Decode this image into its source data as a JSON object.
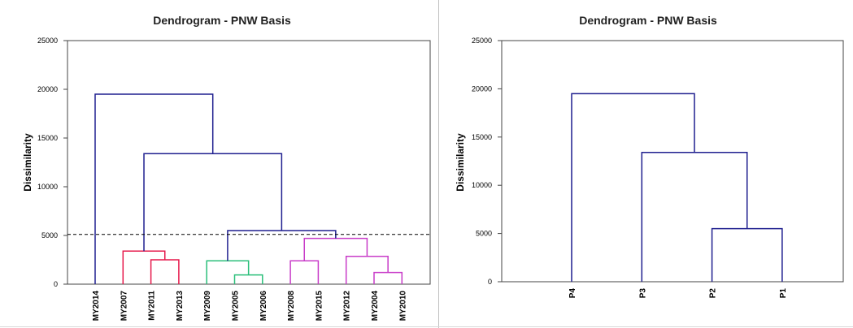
{
  "chart_data": [
    {
      "type": "dendrogram",
      "title": "Dendrogram - PNW Basis",
      "ylabel": "Dissimilarity",
      "xlabel": "",
      "ylim": [
        0,
        25000
      ],
      "yticks": [
        0,
        5000,
        10000,
        15000,
        20000,
        25000
      ],
      "grid": false,
      "leaves": [
        "MY2014",
        "MY2007",
        "MY2011",
        "MY2013",
        "MY2009",
        "MY2005",
        "MY2006",
        "MY2008",
        "MY2015",
        "MY2012",
        "MY2004",
        "MY2010"
      ],
      "cut_line": 5100,
      "cluster_colors": [
        "#1f1f8f",
        "#e6194b",
        "#2bbf7a",
        "#c83cc8"
      ],
      "merges": [
        {
          "left": "MY2011",
          "right": "MY2013",
          "height": 2500,
          "color": "#e6194b"
        },
        {
          "left": "MY2007",
          "right": "MY2011+MY2013",
          "height": 3400,
          "color": "#e6194b"
        },
        {
          "left": "MY2005",
          "right": "MY2006",
          "height": 950,
          "color": "#2bbf7a"
        },
        {
          "left": "MY2009",
          "right": "MY2005+MY2006",
          "height": 2400,
          "color": "#2bbf7a"
        },
        {
          "left": "MY2008",
          "right": "MY2015",
          "height": 2400,
          "color": "#c83cc8"
        },
        {
          "left": "MY2004",
          "right": "MY2010",
          "height": 1200,
          "color": "#c83cc8"
        },
        {
          "left": "MY2012",
          "right": "MY2004+MY2010",
          "height": 2850,
          "color": "#c83cc8"
        },
        {
          "left": "MY2008+MY2015",
          "right": "MY2012+MY2004+MY2010",
          "height": 4700,
          "color": "#c83cc8"
        },
        {
          "left": "MY2009+MY2005+MY2006",
          "right": "MY2008+MY2015+MY2012+MY2004+MY2010",
          "height": 5500,
          "color": "#1f1f8f"
        },
        {
          "left": "MY2007+MY2011+MY2013",
          "right": "MY2009+...+MY2010",
          "height": 13400,
          "color": "#1f1f8f"
        },
        {
          "left": "MY2014",
          "right": "rest",
          "height": 19500,
          "color": "#1f1f8f"
        }
      ]
    },
    {
      "type": "dendrogram",
      "title": "Dendrogram - PNW Basis",
      "ylabel": "Dissimilarity",
      "xlabel": "",
      "ylim": [
        0,
        25000
      ],
      "yticks": [
        0,
        5000,
        10000,
        15000,
        20000,
        25000
      ],
      "grid": false,
      "leaves": [
        "P4",
        "P3",
        "P2",
        "P1"
      ],
      "merges": [
        {
          "left": "P2",
          "right": "P1",
          "height": 5500,
          "color": "#1f1f8f"
        },
        {
          "left": "P3",
          "right": "P2+P1",
          "height": 13400,
          "color": "#1f1f8f"
        },
        {
          "left": "P4",
          "right": "P3+P2+P1",
          "height": 19500,
          "color": "#1f1f8f"
        }
      ]
    }
  ]
}
